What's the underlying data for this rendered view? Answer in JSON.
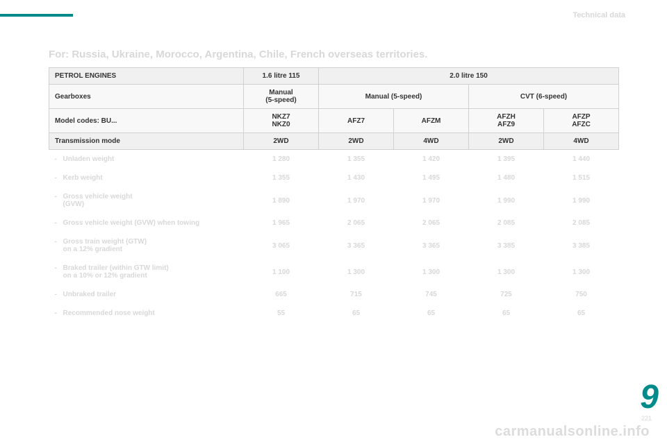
{
  "header": {
    "section": "Technical data"
  },
  "title": "For: Russia, Ukraine, Morocco, Argentina, Chile, French overseas territories.",
  "table": {
    "top": {
      "engines_label": "PETROL ENGINES",
      "col1": "1.6 litre 115",
      "col2": "2.0 litre 150",
      "gearboxes_label": "Gearboxes",
      "g1": "Manual\n(5-speed)",
      "g2": "Manual (5-speed)",
      "g3": "CVT (6-speed)",
      "model_label": "Model codes: BU...",
      "m1": "NKZ7\nNKZ0",
      "m2": "AFZ7",
      "m3": "AFZM",
      "m4": "AFZH\nAFZ9",
      "m5": "AFZP\nAFZC",
      "trans_label": "Transmission mode",
      "t1": "2WD",
      "t2": "2WD",
      "t3": "4WD",
      "t4": "2WD",
      "t5": "4WD"
    },
    "rows": [
      {
        "label": "Unladen weight",
        "v": [
          "1 280",
          "1 355",
          "1 420",
          "1 395",
          "1 440"
        ]
      },
      {
        "label": "Kerb weight",
        "v": [
          "1 355",
          "1 430",
          "1 495",
          "1 480",
          "1 515"
        ]
      },
      {
        "label": "Gross vehicle weight\n(GVW)",
        "v": [
          "1 890",
          "1 970",
          "1 970",
          "1 990",
          "1 990"
        ]
      },
      {
        "label": "Gross vehicle weight (GVW) when towing",
        "v": [
          "1 965",
          "2 065",
          "2 065",
          "2 085",
          "2 085"
        ]
      },
      {
        "label": "Gross train weight (GTW)\non a 12% gradient",
        "v": [
          "3 065",
          "3 365",
          "3 365",
          "3 385",
          "3 385"
        ]
      },
      {
        "label": "Braked trailer (within GTW limit)\non a 10% or 12% gradient",
        "v": [
          "1 100",
          "1 300",
          "1 300",
          "1 300",
          "1 300"
        ]
      },
      {
        "label": "Unbraked trailer",
        "v": [
          "665",
          "715",
          "745",
          "725",
          "750"
        ]
      },
      {
        "label": "Recommended nose weight",
        "v": [
          "55",
          "65",
          "65",
          "65",
          "65"
        ]
      }
    ]
  },
  "chapter": "9",
  "pagenum": "221",
  "watermark": "carmanualsonline.info"
}
